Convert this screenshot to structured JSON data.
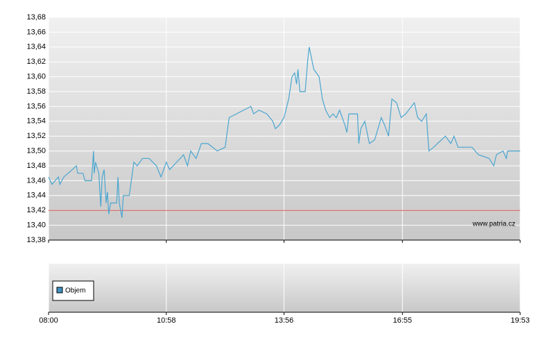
{
  "chart_data": {
    "type": "line",
    "x": [
      "08:00",
      "08:05",
      "08:15",
      "08:17",
      "08:23",
      "08:36",
      "08:42",
      "08:44",
      "08:52",
      "08:55",
      "09:05",
      "09:08",
      "09:09",
      "09:11",
      "09:16",
      "09:19",
      "09:21",
      "09:24",
      "09:27",
      "09:29",
      "09:31",
      "09:34",
      "09:43",
      "09:45",
      "09:47",
      "09:51",
      "09:53",
      "10:02",
      "10:09",
      "10:14",
      "10:22",
      "10:32",
      "10:43",
      "10:50",
      "10:58",
      "11:03",
      "11:19",
      "11:24",
      "11:30",
      "11:35",
      "11:43",
      "11:51",
      "12:01",
      "12:15",
      "12:27",
      "12:33",
      "13:06",
      "13:10",
      "13:18",
      "13:30",
      "13:39",
      "13:43",
      "13:49",
      "13:56",
      "14:03",
      "14:08",
      "14:12",
      "14:15",
      "14:17",
      "14:20",
      "14:28",
      "14:32",
      "14:34",
      "14:41",
      "14:49",
      "14:54",
      "14:59",
      "15:05",
      "15:10",
      "15:15",
      "15:20",
      "15:28",
      "15:31",
      "15:34",
      "15:47",
      "15:49",
      "15:52",
      "15:58",
      "16:05",
      "16:13",
      "16:23",
      "16:28",
      "16:34",
      "16:39",
      "16:46",
      "16:53",
      "17:00",
      "17:13",
      "17:18",
      "17:24",
      "17:31",
      "17:35",
      "17:42",
      "18:00",
      "18:08",
      "18:13",
      "18:19",
      "18:40",
      "18:50",
      "19:06",
      "19:13",
      "19:17",
      "19:27",
      "19:32",
      "19:34",
      "19:53"
    ],
    "series": [
      {
        "color": "#4aa6d0",
        "values": [
          13.465,
          13.455,
          13.465,
          13.455,
          13.465,
          13.475,
          13.48,
          13.47,
          13.47,
          13.46,
          13.46,
          13.5,
          13.47,
          13.485,
          13.47,
          13.425,
          13.465,
          13.475,
          13.43,
          13.445,
          13.415,
          13.43,
          13.43,
          13.465,
          13.43,
          13.41,
          13.44,
          13.44,
          13.485,
          13.48,
          13.49,
          13.49,
          13.48,
          13.465,
          13.485,
          13.475,
          13.49,
          13.495,
          13.48,
          13.5,
          13.49,
          13.51,
          13.51,
          13.5,
          13.505,
          13.545,
          13.56,
          13.55,
          13.555,
          13.55,
          13.54,
          13.53,
          13.535,
          13.545,
          13.57,
          13.6,
          13.605,
          13.59,
          13.61,
          13.58,
          13.58,
          13.625,
          13.64,
          13.61,
          13.6,
          13.57,
          13.555,
          13.545,
          13.55,
          13.545,
          13.555,
          13.535,
          13.525,
          13.55,
          13.55,
          13.51,
          13.53,
          13.54,
          13.51,
          13.515,
          13.545,
          13.535,
          13.52,
          13.57,
          13.565,
          13.545,
          13.55,
          13.565,
          13.545,
          13.54,
          13.55,
          13.5,
          13.505,
          13.52,
          13.51,
          13.52,
          13.505,
          13.505,
          13.495,
          13.49,
          13.48,
          13.495,
          13.5,
          13.49,
          13.5,
          13.5
        ]
      }
    ],
    "reference_line": {
      "value": 13.42,
      "color": "#d9534f"
    },
    "xlim": [
      "08:00",
      "19:53"
    ],
    "xticks": [
      "08:00",
      "10:58",
      "13:56",
      "16:55",
      "19:53"
    ],
    "ylim": [
      13.38,
      13.68
    ],
    "yticks": [
      {
        "value": 13.38,
        "label": "13,38"
      },
      {
        "value": 13.4,
        "label": "13,40"
      },
      {
        "value": 13.42,
        "label": "13,42"
      },
      {
        "value": 13.44,
        "label": "13,44"
      },
      {
        "value": 13.46,
        "label": "13,46"
      },
      {
        "value": 13.48,
        "label": "13,48"
      },
      {
        "value": 13.5,
        "label": "13,50"
      },
      {
        "value": 13.52,
        "label": "13,52"
      },
      {
        "value": 13.54,
        "label": "13,54"
      },
      {
        "value": 13.56,
        "label": "13,56"
      },
      {
        "value": 13.58,
        "label": "13,58"
      },
      {
        "value": 13.6,
        "label": "13,60"
      },
      {
        "value": 13.62,
        "label": "13,62"
      },
      {
        "value": 13.64,
        "label": "13,64"
      },
      {
        "value": 13.66,
        "label": "13,66"
      },
      {
        "value": 13.68,
        "label": "13,68"
      }
    ],
    "grid": true,
    "watermark": "www.patria.cz",
    "volume_legend": {
      "name": "Objem",
      "color": "#3f8fc0"
    }
  }
}
